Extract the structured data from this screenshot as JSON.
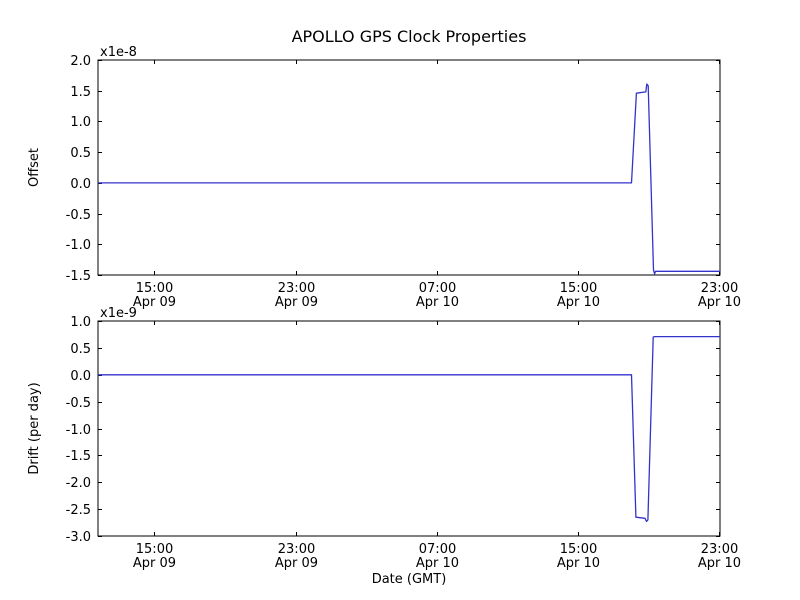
{
  "figure": {
    "title": "APOLLO GPS Clock Properties",
    "xlabel": "Date (GMT)",
    "background": "#ffffff",
    "axis_color": "#000000",
    "line_color": "#3333cc"
  },
  "chart_data": [
    {
      "type": "line",
      "name": "offset-subplot",
      "ylabel": "Offset",
      "scale_label": "x1e-8",
      "ylim": [
        -1.5,
        2.0
      ],
      "yticks": [
        2.0,
        1.5,
        1.0,
        0.5,
        0.0,
        -0.5,
        -1.0,
        -1.5
      ],
      "xlim": [
        11.8,
        47.07
      ],
      "xticks": [
        {
          "hour": 15,
          "time": "15:00",
          "date": "Apr 09"
        },
        {
          "hour": 23,
          "time": "23:00",
          "date": "Apr 09"
        },
        {
          "hour": 31,
          "time": "07:00",
          "date": "Apr 10"
        },
        {
          "hour": 39,
          "time": "15:00",
          "date": "Apr 10"
        },
        {
          "hour": 47,
          "time": "23:00",
          "date": "Apr 10"
        }
      ],
      "show_xtick_labels": true,
      "series": [
        {
          "name": "offset",
          "x": [
            11.8,
            42.05,
            42.33,
            42.86,
            42.92,
            43.0,
            43.3,
            43.36,
            43.42,
            47.07
          ],
          "y": [
            0.0,
            0.0,
            1.46,
            1.48,
            1.61,
            1.58,
            -1.42,
            -1.48,
            -1.44,
            -1.44
          ]
        }
      ]
    },
    {
      "type": "line",
      "name": "drift-subplot",
      "ylabel": "Drift (per day)",
      "scale_label": "x1e-9",
      "ylim": [
        -3.0,
        1.0
      ],
      "yticks": [
        1.0,
        0.5,
        0.0,
        -0.5,
        -1.0,
        -1.5,
        -2.0,
        -2.5,
        -3.0
      ],
      "xlim": [
        11.8,
        47.07
      ],
      "xticks": [
        {
          "hour": 15,
          "time": "15:00",
          "date": "Apr 09"
        },
        {
          "hour": 23,
          "time": "23:00",
          "date": "Apr 09"
        },
        {
          "hour": 31,
          "time": "07:00",
          "date": "Apr 10"
        },
        {
          "hour": 39,
          "time": "15:00",
          "date": "Apr 10"
        },
        {
          "hour": 47,
          "time": "23:00",
          "date": "Apr 10"
        }
      ],
      "show_xtick_labels": true,
      "series": [
        {
          "name": "drift",
          "x": [
            11.8,
            42.05,
            42.3,
            42.82,
            42.9,
            42.98,
            43.28,
            43.35,
            47.07
          ],
          "y": [
            0.0,
            0.0,
            -2.65,
            -2.67,
            -2.73,
            -2.7,
            0.7,
            0.71,
            0.71
          ]
        }
      ]
    }
  ]
}
